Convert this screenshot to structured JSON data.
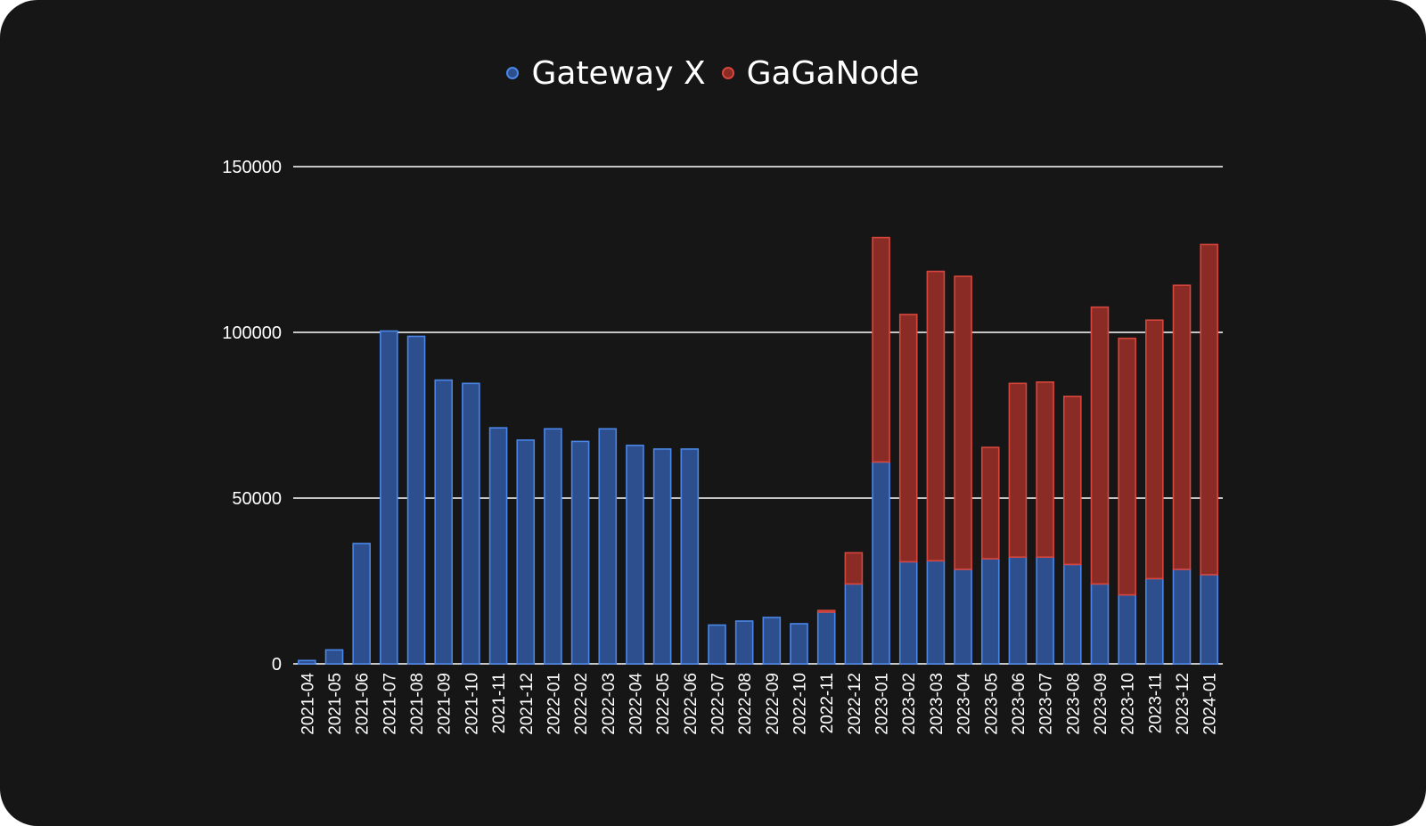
{
  "chart_data": {
    "type": "bar",
    "stacked": true,
    "title": "",
    "xlabel": "",
    "ylabel": "",
    "ylim": [
      0,
      150000
    ],
    "yticks": [
      0,
      50000,
      100000,
      150000
    ],
    "grid": true,
    "legend_position": "top-center",
    "categories": [
      "2021-04",
      "2021-05",
      "2021-06",
      "2021-07",
      "2021-08",
      "2021-09",
      "2021-10",
      "2021-11",
      "2021-12",
      "2022-01",
      "2022-02",
      "2022-03",
      "2022-04",
      "2022-05",
      "2022-06",
      "2022-07",
      "2022-08",
      "2022-09",
      "2022-10",
      "2022-11",
      "2022-12",
      "2023-01",
      "2023-02",
      "2023-03",
      "2023-04",
      "2023-05",
      "2023-06",
      "2023-07",
      "2023-08",
      "2023-09",
      "2023-10",
      "2023-11",
      "2023-12",
      "2024-01"
    ],
    "series": [
      {
        "name": "Gateway X",
        "color": "#2d4f8e",
        "border_color": "#4a86e8",
        "values": [
          1000,
          4200,
          36300,
          100400,
          98800,
          85600,
          84600,
          71200,
          67500,
          70900,
          67100,
          70900,
          65900,
          64800,
          64800,
          11700,
          12900,
          14000,
          12100,
          15600,
          24100,
          60900,
          30800,
          31100,
          28500,
          31700,
          32200,
          32200,
          30000,
          24100,
          20800,
          25700,
          28500,
          26900
        ]
      },
      {
        "name": "GaGaNode",
        "color": "#8a2b25",
        "border_color": "#d6463c",
        "values": [
          0,
          0,
          0,
          0,
          0,
          0,
          0,
          0,
          0,
          0,
          0,
          0,
          0,
          0,
          0,
          0,
          0,
          0,
          0,
          500,
          9400,
          67700,
          74600,
          87300,
          88400,
          33600,
          52400,
          52800,
          50700,
          83500,
          77400,
          78000,
          85700,
          99600
        ]
      }
    ]
  },
  "legend": {
    "items": [
      {
        "label": "Gateway X",
        "color": "#2d4f8e"
      },
      {
        "label": "GaGaNode",
        "color": "#c0392b"
      }
    ]
  }
}
